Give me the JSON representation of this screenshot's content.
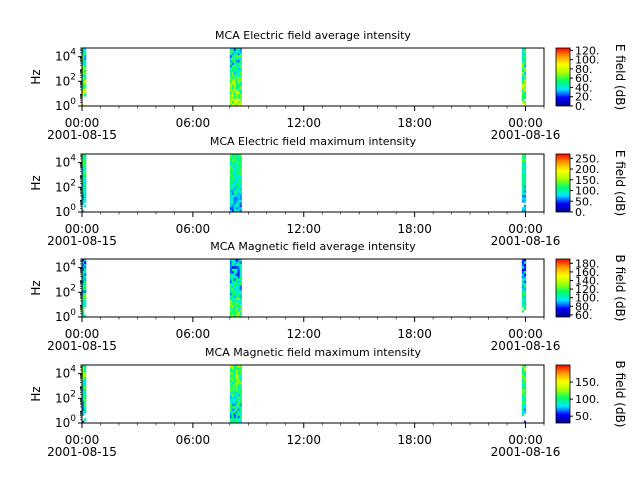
{
  "chart_data": [
    {
      "type": "heatmap",
      "title": "MCA  Electric field average intensity",
      "ylabel": "Hz",
      "yscale": "log",
      "ylim": [
        1,
        50000
      ],
      "y_ticks": [
        {
          "b": "10",
          "e": "0"
        },
        {
          "b": "10",
          "e": "2"
        },
        {
          "b": "10",
          "e": "4"
        }
      ],
      "xlim": [
        "2001-08-15T00:00",
        "2001-08-16T01:00"
      ],
      "x_ticks": [
        {
          "value": "2001-08-15T00:00",
          "label": "00:00",
          "date": "2001-08-15"
        },
        {
          "value": "2001-08-15T06:00",
          "label": "06:00",
          "date": ""
        },
        {
          "value": "2001-08-15T12:00",
          "label": "12:00",
          "date": ""
        },
        {
          "value": "2001-08-15T18:00",
          "label": "18:00",
          "date": ""
        },
        {
          "value": "2001-08-16T00:00",
          "label": "00:00",
          "date": "2001-08-16"
        }
      ],
      "colorbar": {
        "label": "E field (dB)",
        "range": [
          0,
          125
        ],
        "ticks": [
          "0.",
          "20.",
          "40.",
          "60.",
          "80.",
          "100.",
          "120."
        ]
      },
      "intervals": [
        {
          "start": "2001-08-15T00:00",
          "end": "2001-08-15T00:04"
        },
        {
          "start": "2001-08-15T08:00",
          "end": "2001-08-15T08:38"
        },
        {
          "start": "2001-08-15T23:48",
          "end": "2001-08-15T23:52"
        }
      ]
    },
    {
      "type": "heatmap",
      "title": "MCA  Electric field maximum intensity",
      "ylabel": "Hz",
      "yscale": "log",
      "ylim": [
        1,
        50000
      ],
      "y_ticks": [
        {
          "b": "10",
          "e": "0"
        },
        {
          "b": "10",
          "e": "2"
        },
        {
          "b": "10",
          "e": "4"
        }
      ],
      "xlim": [
        "2001-08-15T00:00",
        "2001-08-16T01:00"
      ],
      "x_ticks": [
        {
          "value": "2001-08-15T00:00",
          "label": "00:00",
          "date": "2001-08-15"
        },
        {
          "value": "2001-08-15T06:00",
          "label": "06:00",
          "date": ""
        },
        {
          "value": "2001-08-15T12:00",
          "label": "12:00",
          "date": ""
        },
        {
          "value": "2001-08-15T18:00",
          "label": "18:00",
          "date": ""
        },
        {
          "value": "2001-08-16T00:00",
          "label": "00:00",
          "date": "2001-08-16"
        }
      ],
      "colorbar": {
        "label": "E field (dB)",
        "range": [
          0,
          270
        ],
        "ticks": [
          "0.",
          "50.",
          "100.",
          "150.",
          "200.",
          "250."
        ]
      },
      "intervals": [
        {
          "start": "2001-08-15T00:00",
          "end": "2001-08-15T00:04"
        },
        {
          "start": "2001-08-15T08:00",
          "end": "2001-08-15T08:38"
        },
        {
          "start": "2001-08-15T23:48",
          "end": "2001-08-15T23:52"
        }
      ]
    },
    {
      "type": "heatmap",
      "title": "MCA  Magnetic field average intensity",
      "ylabel": "Hz",
      "yscale": "log",
      "ylim": [
        1,
        50000
      ],
      "y_ticks": [
        {
          "b": "10",
          "e": "0"
        },
        {
          "b": "10",
          "e": "2"
        },
        {
          "b": "10",
          "e": "4"
        }
      ],
      "xlim": [
        "2001-08-15T00:00",
        "2001-08-16T01:00"
      ],
      "x_ticks": [
        {
          "value": "2001-08-15T00:00",
          "label": "00:00",
          "date": "2001-08-15"
        },
        {
          "value": "2001-08-15T06:00",
          "label": "06:00",
          "date": ""
        },
        {
          "value": "2001-08-15T12:00",
          "label": "12:00",
          "date": ""
        },
        {
          "value": "2001-08-15T18:00",
          "label": "18:00",
          "date": ""
        },
        {
          "value": "2001-08-16T00:00",
          "label": "00:00",
          "date": "2001-08-16"
        }
      ],
      "colorbar": {
        "label": "B field (dB)",
        "range": [
          55,
          190
        ],
        "ticks": [
          "60.",
          "80.",
          "100.",
          "120.",
          "140.",
          "160.",
          "180."
        ]
      },
      "intervals": [
        {
          "start": "2001-08-15T00:00",
          "end": "2001-08-15T00:04"
        },
        {
          "start": "2001-08-15T08:00",
          "end": "2001-08-15T08:38"
        },
        {
          "start": "2001-08-15T23:48",
          "end": "2001-08-15T23:52"
        }
      ]
    },
    {
      "type": "heatmap",
      "title": "MCA  Magnetic field maximum intensity",
      "ylabel": "Hz",
      "yscale": "log",
      "ylim": [
        1,
        50000
      ],
      "y_ticks": [
        {
          "b": "10",
          "e": "0"
        },
        {
          "b": "10",
          "e": "2"
        },
        {
          "b": "10",
          "e": "4"
        }
      ],
      "xlim": [
        "2001-08-15T00:00",
        "2001-08-16T01:00"
      ],
      "x_ticks": [
        {
          "value": "2001-08-15T00:00",
          "label": "00:00",
          "date": "2001-08-15"
        },
        {
          "value": "2001-08-15T06:00",
          "label": "06:00",
          "date": ""
        },
        {
          "value": "2001-08-15T12:00",
          "label": "12:00",
          "date": ""
        },
        {
          "value": "2001-08-15T18:00",
          "label": "18:00",
          "date": ""
        },
        {
          "value": "2001-08-16T00:00",
          "label": "00:00",
          "date": "2001-08-16"
        }
      ],
      "colorbar": {
        "label": "B field (dB)",
        "range": [
          30,
          200
        ],
        "ticks": [
          "50.",
          "100.",
          "150."
        ]
      },
      "intervals": [
        {
          "start": "2001-08-15T00:00",
          "end": "2001-08-15T00:04"
        },
        {
          "start": "2001-08-15T08:00",
          "end": "2001-08-15T08:38"
        },
        {
          "start": "2001-08-15T23:48",
          "end": "2001-08-15T23:52"
        }
      ]
    }
  ],
  "colormap": [
    "#00008b",
    "#0000ff",
    "#00e5ff",
    "#00ff66",
    "#a6ff00",
    "#ffff00",
    "#ff9900",
    "#ff0000"
  ]
}
